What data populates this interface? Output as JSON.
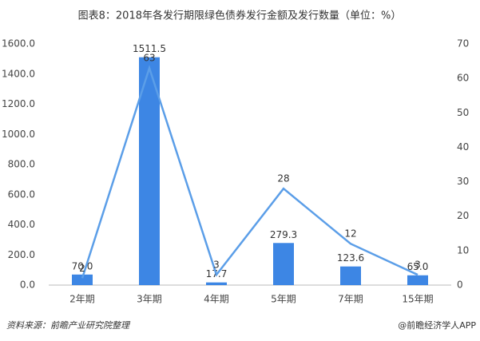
{
  "chart_data": {
    "type": "bar",
    "title": "图表8：2018年各发行期限绿色债券发行金额及发行数量（单位：%）",
    "categories": [
      "2年期",
      "3年期",
      "4年期",
      "5年期",
      "7年期",
      "15年期"
    ],
    "series": [
      {
        "type": "bar",
        "color": "#3d86e4",
        "values": [
          70.0,
          1511.5,
          17.7,
          279.3,
          123.6,
          65.0
        ],
        "value_labels": [
          "70.0",
          "1511.5",
          "17.7",
          "279.3",
          "123.6",
          "65.0"
        ]
      },
      {
        "type": "line",
        "axis": "y2",
        "color": "#5b9ee8",
        "values": [
          2,
          63,
          3,
          28,
          12,
          3
        ]
      }
    ],
    "ylim": [
      0,
      1600
    ],
    "yticks": [
      {
        "value": 0,
        "label": "0.0"
      },
      {
        "value": 200,
        "label": "200.0"
      },
      {
        "value": 400,
        "label": "400.0"
      },
      {
        "value": 600,
        "label": "600.0"
      },
      {
        "value": 800,
        "label": "800.0"
      },
      {
        "value": 1000,
        "label": "1000.0"
      },
      {
        "value": 1200,
        "label": "1200.0"
      },
      {
        "value": 1400,
        "label": "1400.0"
      },
      {
        "value": 1600,
        "label": "1600.0"
      }
    ],
    "y2lim": [
      0,
      70
    ],
    "y2ticks": [
      0,
      10,
      20,
      30,
      40,
      50,
      60,
      70
    ],
    "source": "资料来源：前瞻产业研究院整理",
    "brand": "@前瞻经济学人APP"
  }
}
